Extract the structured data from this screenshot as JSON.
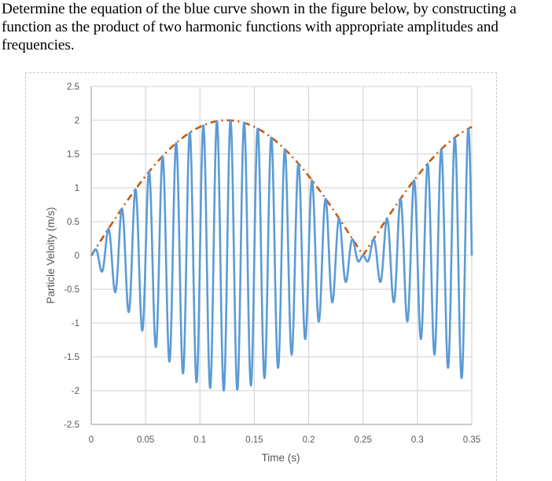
{
  "question": {
    "text": "Determine the equation of the blue curve shown in the figure below, by constructing a function as the product of two harmonic functions with appropriate amplitudes and frequencies."
  },
  "chart_data": {
    "type": "line",
    "title": "",
    "xlabel": "Time (s)",
    "ylabel": "Particle Veloity (m/s)",
    "xlim": [
      0,
      0.35
    ],
    "ylim": [
      -2.5,
      2.5
    ],
    "x_ticks": [
      0,
      0.05,
      0.1,
      0.15,
      0.2,
      0.25,
      0.3,
      0.35
    ],
    "x_tick_labels": [
      "0",
      "0.05",
      "0.1",
      "0.15",
      "0.2",
      "0.25",
      "0.3",
      "0.35"
    ],
    "y_ticks": [
      2.5,
      2,
      1.5,
      1,
      0.5,
      0,
      -0.5,
      -1,
      -1.5,
      -2,
      -2.5
    ],
    "y_tick_labels": [
      "2.5",
      "2",
      "1.5",
      "1",
      "0.5",
      "0",
      "-0.5",
      "-1",
      "-1.5",
      "-2",
      "-2.5"
    ],
    "grid": true,
    "legend": null,
    "series": [
      {
        "name": "blue curve (particle velocity)",
        "style": "solid",
        "color": "#5b9bd5",
        "function": "2*|sin(2*pi*2*t)|-modulated carrier: v(t) = 2*sin(2*pi*2*t)*sin(2*pi*80*t)",
        "envelope_amplitude": 2,
        "envelope_frequency_hz": 2,
        "carrier_frequency_hz": 80,
        "approx_peak_points": [
          {
            "t": 0.0,
            "v": 0.0
          },
          {
            "t": 0.125,
            "v": 2.0
          },
          {
            "t": 0.25,
            "v": 0.0
          },
          {
            "t": 0.34,
            "v": 1.65
          }
        ]
      },
      {
        "name": "envelope",
        "style": "dash-dot",
        "color": "#c55a11",
        "function": "|2*sin(2*pi*2*t)|",
        "approx_points": [
          {
            "t": 0.0,
            "v": 0.0
          },
          {
            "t": 0.05,
            "v": 1.18
          },
          {
            "t": 0.1,
            "v": 1.9
          },
          {
            "t": 0.125,
            "v": 2.0
          },
          {
            "t": 0.15,
            "v": 1.9
          },
          {
            "t": 0.2,
            "v": 1.18
          },
          {
            "t": 0.25,
            "v": 0.0
          },
          {
            "t": 0.3,
            "v": 1.18
          },
          {
            "t": 0.35,
            "v": 1.9
          }
        ]
      }
    ]
  },
  "colors": {
    "blue_curve": "#5b9bd5",
    "envelope": "#c55a11",
    "grid": "#d9d9d9",
    "axis_text": "#595959"
  }
}
